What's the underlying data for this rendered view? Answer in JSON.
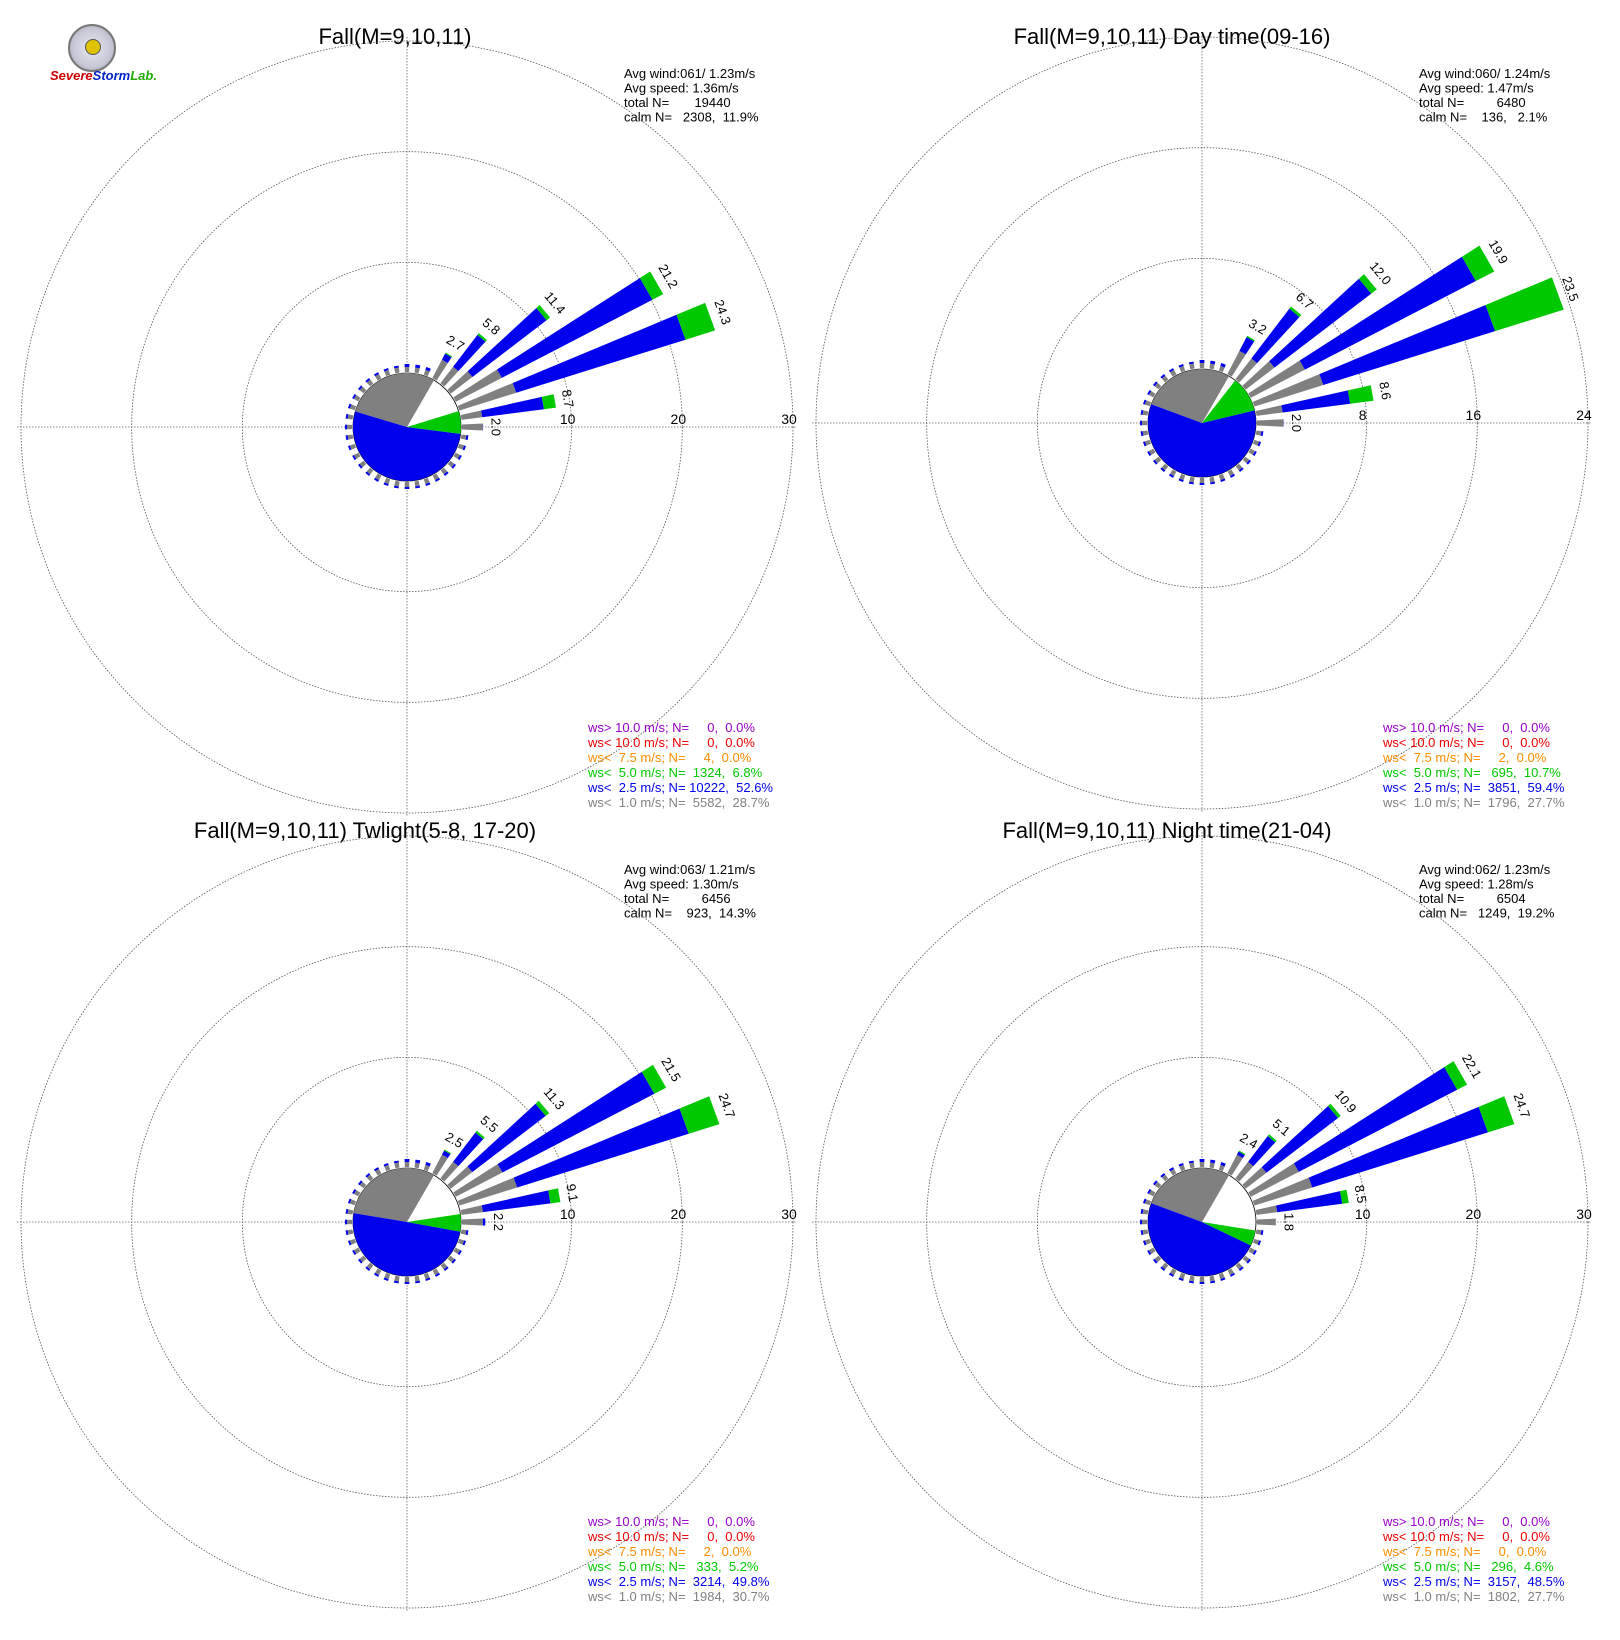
{
  "logo": {
    "part1": "Severe",
    "part2": "Storm",
    "part3": "Lab."
  },
  "colors": {
    "calm_speed": "#808080",
    "low_speed": "#0000ee",
    "mid_speed": "#00c800",
    "higher_speed": "#ff8c00",
    "high_speed": "#ee0000",
    "max_speed": "#9900cc"
  },
  "chart_data": [
    {
      "type": "windrose",
      "title": "Fall(M=9,10,11)",
      "stats": [
        "Avg wind:061/ 1.23m/s",
        "Avg speed: 1.36m/s",
        "total N=       19440",
        "calm N=   2308,  11.9%"
      ],
      "rmax": 30,
      "rings": [
        10,
        20,
        30
      ],
      "ring_labels": [
        "10",
        "20",
        "30"
      ],
      "petals": [
        {
          "dir": 60,
          "total": 21.2,
          "low": 20.1,
          "mid": 1.1
        },
        {
          "dir": 70,
          "total": 24.3,
          "low": 21.5,
          "mid": 2.8
        },
        {
          "dir": 50,
          "total": 11.4,
          "low": 11.0,
          "mid": 0.4
        },
        {
          "dir": 40,
          "total": 5.8,
          "low": 5.6,
          "mid": 0.2
        },
        {
          "dir": 30,
          "total": 2.7,
          "low": 2.6,
          "mid": 0.1
        },
        {
          "dir": 80,
          "total": 8.7,
          "low": 7.6,
          "mid": 1.1
        },
        {
          "dir": 90,
          "total": 2.0,
          "low": 2.0,
          "mid": 0
        }
      ],
      "legend": [
        {
          "label": "ws> 10.0 m/s; N=",
          "n": "0",
          "pct": "0.0%",
          "color": "#9900cc"
        },
        {
          "label": "ws< 10.0 m/s; N=",
          "n": "0",
          "pct": "0.0%",
          "color": "#ee0000"
        },
        {
          "label": "ws<  7.5 m/s; N=",
          "n": "4",
          "pct": "0.0%",
          "color": "#ff8c00"
        },
        {
          "label": "ws<  5.0 m/s; N=",
          "n": "1324",
          "pct": "6.8%",
          "color": "#00c800"
        },
        {
          "label": "ws<  2.5 m/s; N=",
          "n": "10222",
          "pct": "52.6%",
          "color": "#0000ee"
        },
        {
          "label": "ws<  1.0 m/s; N=",
          "n": "5582",
          "pct": "28.7%",
          "color": "#808080"
        }
      ],
      "pie": [
        28.7,
        52.6,
        6.8
      ]
    },
    {
      "type": "windrose",
      "title": "Fall(M=9,10,11) Day time(09-16)",
      "stats": [
        "Avg wind:060/ 1.24m/s",
        "Avg speed: 1.47m/s",
        "total N=         6480",
        "calm N=    136,   2.1%"
      ],
      "rmax": 24,
      "rings": [
        8,
        16,
        24
      ],
      "ring_labels": [
        "8",
        "16",
        "24"
      ],
      "petals": [
        {
          "dir": 60,
          "total": 19.9,
          "low": 18.4,
          "mid": 1.5
        },
        {
          "dir": 70,
          "total": 23.5,
          "low": 18.3,
          "mid": 5.2
        },
        {
          "dir": 50,
          "total": 12.0,
          "low": 11.5,
          "mid": 0.5
        },
        {
          "dir": 40,
          "total": 6.7,
          "low": 6.5,
          "mid": 0.2
        },
        {
          "dir": 30,
          "total": 3.2,
          "low": 3.1,
          "mid": 0.1
        },
        {
          "dir": 80,
          "total": 8.6,
          "low": 6.9,
          "mid": 1.7
        },
        {
          "dir": 90,
          "total": 2.0,
          "low": 2.0,
          "mid": 0
        }
      ],
      "legend": [
        {
          "label": "ws> 10.0 m/s; N=",
          "n": "0",
          "pct": "0.0%",
          "color": "#9900cc"
        },
        {
          "label": "ws< 10.0 m/s; N=",
          "n": "0",
          "pct": "0.0%",
          "color": "#ee0000"
        },
        {
          "label": "ws<  7.5 m/s; N=",
          "n": "2",
          "pct": "0.0%",
          "color": "#ff8c00"
        },
        {
          "label": "ws<  5.0 m/s; N=",
          "n": "695",
          "pct": "10.7%",
          "color": "#00c800"
        },
        {
          "label": "ws<  2.5 m/s; N=",
          "n": "3851",
          "pct": "59.4%",
          "color": "#0000ee"
        },
        {
          "label": "ws<  1.0 m/s; N=",
          "n": "1796",
          "pct": "27.7%",
          "color": "#808080"
        }
      ],
      "pie": [
        27.7,
        59.4,
        10.7
      ]
    },
    {
      "type": "windrose",
      "title": "Fall(M=9,10,11) Twlight(5-8, 17-20)",
      "stats": [
        "Avg wind:063/ 1.21m/s",
        "Avg speed: 1.30m/s",
        "total N=         6456",
        "calm N=    923,  14.3%"
      ],
      "rmax": 30,
      "rings": [
        10,
        20,
        30
      ],
      "ring_labels": [
        "10",
        "20",
        "30"
      ],
      "petals": [
        {
          "dir": 60,
          "total": 21.5,
          "low": 20.3,
          "mid": 1.2
        },
        {
          "dir": 70,
          "total": 24.7,
          "low": 21.8,
          "mid": 2.9
        },
        {
          "dir": 50,
          "total": 11.3,
          "low": 10.9,
          "mid": 0.4
        },
        {
          "dir": 40,
          "total": 5.5,
          "low": 5.3,
          "mid": 0.2
        },
        {
          "dir": 30,
          "total": 2.5,
          "low": 2.4,
          "mid": 0.1
        },
        {
          "dir": 80,
          "total": 9.1,
          "low": 8.2,
          "mid": 0.9
        },
        {
          "dir": 90,
          "total": 2.2,
          "low": 2.2,
          "mid": 0
        }
      ],
      "legend": [
        {
          "label": "ws> 10.0 m/s; N=",
          "n": "0",
          "pct": "0.0%",
          "color": "#9900cc"
        },
        {
          "label": "ws< 10.0 m/s; N=",
          "n": "0",
          "pct": "0.0%",
          "color": "#ee0000"
        },
        {
          "label": "ws<  7.5 m/s; N=",
          "n": "2",
          "pct": "0.0%",
          "color": "#ff8c00"
        },
        {
          "label": "ws<  5.0 m/s; N=",
          "n": "333",
          "pct": "5.2%",
          "color": "#00c800"
        },
        {
          "label": "ws<  2.5 m/s; N=",
          "n": "3214",
          "pct": "49.8%",
          "color": "#0000ee"
        },
        {
          "label": "ws<  1.0 m/s; N=",
          "n": "1984",
          "pct": "30.7%",
          "color": "#808080"
        }
      ],
      "pie": [
        30.7,
        49.8,
        5.2
      ]
    },
    {
      "type": "windrose",
      "title": "Fall(M=9,10,11) Night time(21-04)",
      "stats": [
        "Avg wind:062/ 1.23m/s",
        "Avg speed: 1.28m/s",
        "total N=         6504",
        "calm N=   1249,  19.2%"
      ],
      "rmax": 30,
      "rings": [
        10,
        20,
        30
      ],
      "ring_labels": [
        "10",
        "20",
        "30"
      ],
      "petals": [
        {
          "dir": 60,
          "total": 22.1,
          "low": 21.1,
          "mid": 1.0
        },
        {
          "dir": 70,
          "total": 24.7,
          "low": 22.2,
          "mid": 2.5
        },
        {
          "dir": 50,
          "total": 10.9,
          "low": 10.6,
          "mid": 0.3
        },
        {
          "dir": 40,
          "total": 5.1,
          "low": 4.9,
          "mid": 0.2
        },
        {
          "dir": 30,
          "total": 2.4,
          "low": 2.3,
          "mid": 0.1
        },
        {
          "dir": 80,
          "total": 8.5,
          "low": 7.9,
          "mid": 0.6
        },
        {
          "dir": 90,
          "total": 1.8,
          "low": 1.8,
          "mid": 0
        }
      ],
      "legend": [
        {
          "label": "ws> 10.0 m/s; N=",
          "n": "0",
          "pct": "0.0%",
          "color": "#9900cc"
        },
        {
          "label": "ws< 10.0 m/s; N=",
          "n": "0",
          "pct": "0.0%",
          "color": "#ee0000"
        },
        {
          "label": "ws<  7.5 m/s; N=",
          "n": "0",
          "pct": "0.0%",
          "color": "#ff8c00"
        },
        {
          "label": "ws<  5.0 m/s; N=",
          "n": "296",
          "pct": "4.6%",
          "color": "#00c800"
        },
        {
          "label": "ws<  2.5 m/s; N=",
          "n": "3157",
          "pct": "48.5%",
          "color": "#0000ee"
        },
        {
          "label": "ws<  1.0 m/s; N=",
          "n": "1802",
          "pct": "27.7%",
          "color": "#808080"
        }
      ],
      "pie": [
        27.7,
        48.5,
        4.6
      ]
    }
  ]
}
